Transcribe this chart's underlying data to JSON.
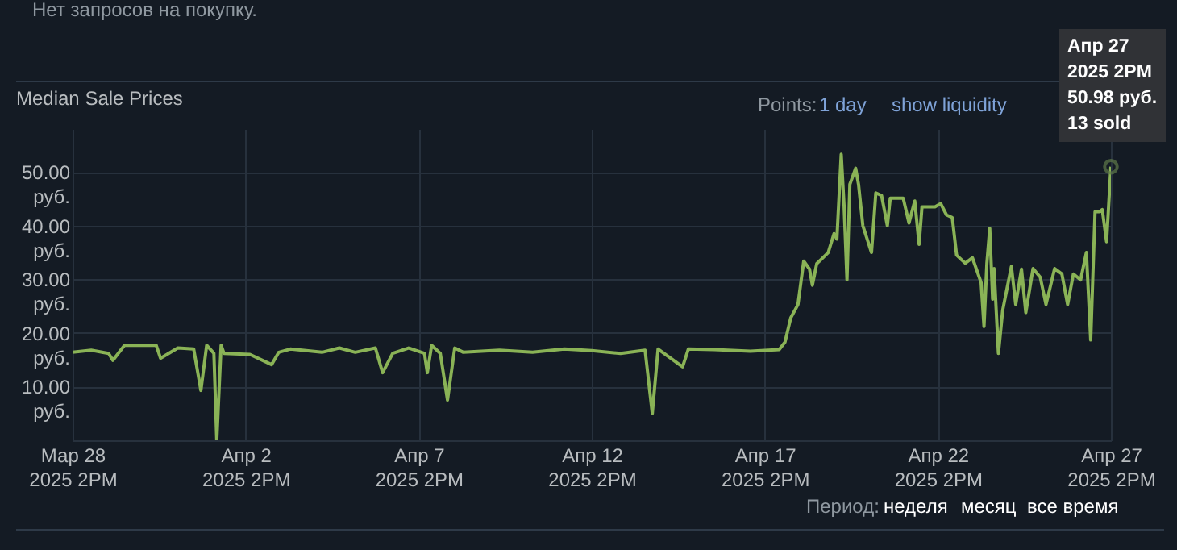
{
  "chart_data": {
    "type": "line",
    "title": "Median Sale Prices",
    "x": [
      "2025-03-28T14:00",
      "2025-03-29T03:00",
      "2025-03-29T15:00",
      "2025-03-29T18:00",
      "2025-03-30T02:00",
      "2025-03-31T00:00",
      "2025-03-31T03:00",
      "2025-03-31T15:00",
      "2025-04-01T02:00",
      "2025-04-01T07:00",
      "2025-04-01T11:00",
      "2025-04-01T16:00",
      "2025-04-01T18:00",
      "2025-04-01T21:00",
      "2025-04-01T23:00",
      "2025-04-02T17:00",
      "2025-04-03T08:00",
      "2025-04-03T13:00",
      "2025-04-03T21:00",
      "2025-04-04T19:00",
      "2025-04-05T07:00",
      "2025-04-05T18:00",
      "2025-04-06T08:00",
      "2025-04-06T13:00",
      "2025-04-06T20:00",
      "2025-04-07T07:00",
      "2025-04-07T18:00",
      "2025-04-07T20:00",
      "2025-04-07T23:00",
      "2025-04-08T05:00",
      "2025-04-08T10:00",
      "2025-04-08T15:00",
      "2025-04-08T21:00",
      "2025-04-09T22:00",
      "2025-04-10T21:00",
      "2025-04-11T19:00",
      "2025-04-12T14:00",
      "2025-04-13T10:00",
      "2025-04-14T03:00",
      "2025-04-14T08:00",
      "2025-04-14T12:00",
      "2025-04-15T05:00",
      "2025-04-15T09:00",
      "2025-04-16T03:00",
      "2025-04-17T04:00",
      "2025-04-18T00:00",
      "2025-04-18T04:00",
      "2025-04-18T08:00",
      "2025-04-18T13:00",
      "2025-04-18T17:00",
      "2025-04-18T21:00",
      "2025-04-18T23:00",
      "2025-04-19T02:00",
      "2025-04-19T10:00",
      "2025-04-19T14:00",
      "2025-04-19T16:00",
      "2025-04-19T19:00",
      "2025-04-19T21:00",
      "2025-04-19T23:00",
      "2025-04-20T01:00",
      "2025-04-20T03:00",
      "2025-04-20T05:00",
      "2025-04-20T07:00",
      "2025-04-20T10:00",
      "2025-04-20T16:00",
      "2025-04-20T19:00",
      "2025-04-20T23:00",
      "2025-04-21T03:00",
      "2025-04-21T05:00",
      "2025-04-21T14:00",
      "2025-04-21T18:00",
      "2025-04-21T22:00",
      "2025-04-22T01:00",
      "2025-04-22T03:00",
      "2025-04-22T12:00",
      "2025-04-22T16:00",
      "2025-04-22T20:00",
      "2025-04-23T00:00",
      "2025-04-23T03:00",
      "2025-04-23T09:00",
      "2025-04-23T14:00",
      "2025-04-23T20:00",
      "2025-04-23T22:00",
      "2025-04-24T00:00",
      "2025-04-24T02:00",
      "2025-04-24T04:00",
      "2025-04-24T05:00",
      "2025-04-24T08:00",
      "2025-04-24T11:00",
      "2025-04-24T17:00",
      "2025-04-24T20:00",
      "2025-04-25T00:00",
      "2025-04-25T03:00",
      "2025-04-25T08:00",
      "2025-04-25T13:00",
      "2025-04-25T17:00",
      "2025-04-25T23:00",
      "2025-04-26T04:00",
      "2025-04-26T08:00",
      "2025-04-26T12:00",
      "2025-04-26T17:00",
      "2025-04-26T21:00",
      "2025-04-27T00:00",
      "2025-04-27T03:00",
      "2025-04-27T06:00",
      "2025-04-27T08:00",
      "2025-04-27T11:00",
      "2025-04-27T14:00"
    ],
    "series": [
      {
        "color": "#8ab356",
        "values": [
          16.4,
          16.8,
          16.2,
          14.9,
          17.7,
          17.7,
          15.3,
          17.2,
          17.0,
          9.3,
          17.7,
          16.2,
          0,
          17.7,
          16.2,
          16.0,
          14.1,
          16.4,
          17.0,
          16.4,
          17.2,
          16.4,
          17.2,
          12.6,
          16.2,
          17.2,
          16.2,
          12.6,
          17.7,
          16.2,
          7.5,
          17.2,
          16.4,
          16.8,
          16.4,
          17.0,
          16.7,
          16.2,
          16.8,
          5.0,
          17.0,
          13.7,
          17.0,
          16.9,
          16.6,
          16.9,
          18.3,
          22.8,
          25.3,
          33.4,
          31.9,
          28.9,
          32.9,
          35.0,
          38.5,
          37.5,
          53.3,
          43.6,
          29.9,
          47.7,
          49.2,
          50.7,
          47.7,
          40.0,
          35.0,
          46.1,
          45.6,
          40.0,
          45.1,
          45.1,
          40.5,
          44.6,
          36.5,
          43.5,
          43.5,
          44.1,
          42.0,
          41.5,
          34.5,
          33.0,
          34.0,
          29.4,
          21.2,
          33.0,
          39.5,
          26.3,
          32.0,
          16.2,
          24.3,
          32.4,
          25.3,
          31.9,
          23.8,
          32.0,
          30.4,
          25.3,
          32.0,
          31.0,
          25.3,
          31.0,
          29.9,
          35.0,
          18.7,
          42.6,
          42.6,
          43.0,
          37.0,
          50.98
        ]
      }
    ],
    "xlim": [
      "2025-03-28T14:00",
      "2025-04-27T14:00"
    ],
    "xticks": [
      {
        "value": "2025-03-28T14:00",
        "label": "Мар 28\n2025 2PM"
      },
      {
        "value": "2025-04-02T14:00",
        "label": "Апр 2\n2025 2PM"
      },
      {
        "value": "2025-04-07T14:00",
        "label": "Апр 7\n2025 2PM"
      },
      {
        "value": "2025-04-12T14:00",
        "label": "Апр 12\n2025 2PM"
      },
      {
        "value": "2025-04-17T14:00",
        "label": "Апр 17\n2025 2PM"
      },
      {
        "value": "2025-04-22T14:00",
        "label": "Апр 22\n2025 2PM"
      },
      {
        "value": "2025-04-27T14:00",
        "label": "Апр 27\n2025 2PM"
      }
    ],
    "ylim": [
      0,
      58
    ],
    "yticks": [
      {
        "value": 10,
        "label": "10.00\nруб."
      },
      {
        "value": 20,
        "label": "20.00\nруб."
      },
      {
        "value": 30,
        "label": "30.00\nруб."
      },
      {
        "value": 40,
        "label": "40.00\nруб."
      },
      {
        "value": 50,
        "label": "50.00\nруб."
      }
    ],
    "grid": true,
    "annotations": [
      "Нет запросов на покупку.",
      "Points:",
      "1 day",
      "show liquidity",
      "Период:",
      "неделя",
      "месяц",
      "все время",
      {
        "text": "Апр 27\n2025 2PM\n50.98 руб.\n13 sold",
        "x": "2025-04-27T14:00",
        "y": 50.98
      }
    ]
  }
}
